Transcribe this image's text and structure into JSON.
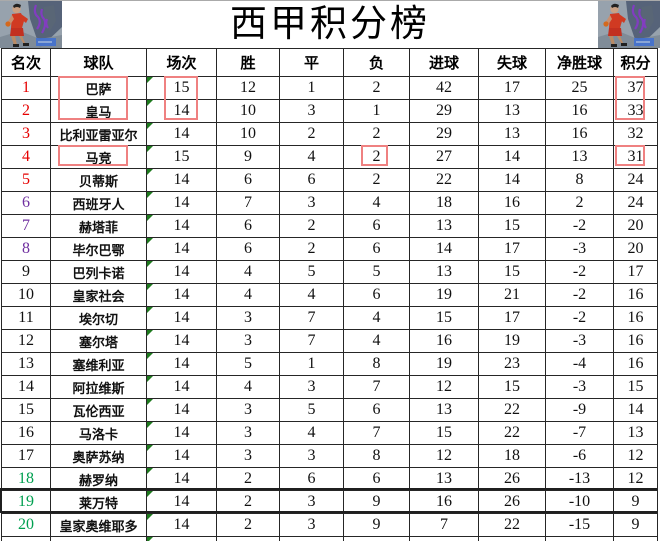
{
  "title": "西甲积分榜",
  "columns": [
    "名次",
    "球队",
    "场次",
    "胜",
    "平",
    "负",
    "进球",
    "失球",
    "净胜球",
    "积分"
  ],
  "rows": [
    {
      "rank": "1",
      "team": "巴萨",
      "played": "15",
      "win": "12",
      "draw": "1",
      "loss": "2",
      "gf": "42",
      "ga": "17",
      "gd": "25",
      "pts": "37",
      "rank_color": "red"
    },
    {
      "rank": "2",
      "team": "皇马",
      "played": "14",
      "win": "10",
      "draw": "3",
      "loss": "1",
      "gf": "29",
      "ga": "13",
      "gd": "16",
      "pts": "33",
      "rank_color": "red"
    },
    {
      "rank": "3",
      "team": "比利亚雷亚尔",
      "played": "14",
      "win": "10",
      "draw": "2",
      "loss": "2",
      "gf": "29",
      "ga": "13",
      "gd": "16",
      "pts": "32",
      "rank_color": "red"
    },
    {
      "rank": "4",
      "team": "马竞",
      "played": "15",
      "win": "9",
      "draw": "4",
      "loss": "2",
      "gf": "27",
      "ga": "14",
      "gd": "13",
      "pts": "31",
      "rank_color": "red"
    },
    {
      "rank": "5",
      "team": "贝蒂斯",
      "played": "14",
      "win": "6",
      "draw": "6",
      "loss": "2",
      "gf": "22",
      "ga": "14",
      "gd": "8",
      "pts": "24",
      "rank_color": "red"
    },
    {
      "rank": "6",
      "team": "西班牙人",
      "played": "14",
      "win": "7",
      "draw": "3",
      "loss": "4",
      "gf": "18",
      "ga": "16",
      "gd": "2",
      "pts": "24",
      "rank_color": "purple"
    },
    {
      "rank": "7",
      "team": "赫塔菲",
      "played": "14",
      "win": "6",
      "draw": "2",
      "loss": "6",
      "gf": "13",
      "ga": "15",
      "gd": "-2",
      "pts": "20",
      "rank_color": "purple"
    },
    {
      "rank": "8",
      "team": "毕尔巴鄂",
      "played": "14",
      "win": "6",
      "draw": "2",
      "loss": "6",
      "gf": "14",
      "ga": "17",
      "gd": "-3",
      "pts": "20",
      "rank_color": "purple"
    },
    {
      "rank": "9",
      "team": "巴列卡诺",
      "played": "14",
      "win": "4",
      "draw": "5",
      "loss": "5",
      "gf": "13",
      "ga": "15",
      "gd": "-2",
      "pts": "17",
      "rank_color": "black"
    },
    {
      "rank": "10",
      "team": "皇家社会",
      "played": "14",
      "win": "4",
      "draw": "4",
      "loss": "6",
      "gf": "19",
      "ga": "21",
      "gd": "-2",
      "pts": "16",
      "rank_color": "black"
    },
    {
      "rank": "11",
      "team": "埃尔切",
      "played": "14",
      "win": "3",
      "draw": "7",
      "loss": "4",
      "gf": "15",
      "ga": "17",
      "gd": "-2",
      "pts": "16",
      "rank_color": "black"
    },
    {
      "rank": "12",
      "team": "塞尔塔",
      "played": "14",
      "win": "3",
      "draw": "7",
      "loss": "4",
      "gf": "16",
      "ga": "19",
      "gd": "-3",
      "pts": "16",
      "rank_color": "black"
    },
    {
      "rank": "13",
      "team": "塞维利亚",
      "played": "14",
      "win": "5",
      "draw": "1",
      "loss": "8",
      "gf": "19",
      "ga": "23",
      "gd": "-4",
      "pts": "16",
      "rank_color": "black"
    },
    {
      "rank": "14",
      "team": "阿拉维斯",
      "played": "14",
      "win": "4",
      "draw": "3",
      "loss": "7",
      "gf": "12",
      "ga": "15",
      "gd": "-3",
      "pts": "15",
      "rank_color": "black"
    },
    {
      "rank": "15",
      "team": "瓦伦西亚",
      "played": "14",
      "win": "3",
      "draw": "5",
      "loss": "6",
      "gf": "13",
      "ga": "22",
      "gd": "-9",
      "pts": "14",
      "rank_color": "black"
    },
    {
      "rank": "16",
      "team": "马洛卡",
      "played": "14",
      "win": "3",
      "draw": "4",
      "loss": "7",
      "gf": "15",
      "ga": "22",
      "gd": "-7",
      "pts": "13",
      "rank_color": "black"
    },
    {
      "rank": "17",
      "team": "奥萨苏纳",
      "played": "14",
      "win": "3",
      "draw": "3",
      "loss": "8",
      "gf": "12",
      "ga": "18",
      "gd": "-6",
      "pts": "12",
      "rank_color": "black"
    },
    {
      "rank": "18",
      "team": "赫罗纳",
      "played": "14",
      "win": "2",
      "draw": "6",
      "loss": "6",
      "gf": "13",
      "ga": "26",
      "gd": "-13",
      "pts": "12",
      "rank_color": "green"
    },
    {
      "rank": "19",
      "team": "莱万特",
      "played": "14",
      "win": "2",
      "draw": "3",
      "loss": "9",
      "gf": "16",
      "ga": "26",
      "gd": "-10",
      "pts": "9",
      "rank_color": "green"
    },
    {
      "rank": "20",
      "team": "皇家奥维耶多",
      "played": "14",
      "win": "2",
      "draw": "3",
      "loss": "9",
      "gf": "7",
      "ga": "22",
      "gd": "-15",
      "pts": "9",
      "rank_color": "green"
    }
  ],
  "colors": {
    "rank": {
      "red": "#e60000",
      "purple": "#7030a0",
      "black": "#111111",
      "green": "#00a050"
    },
    "highlight": "#ef8181",
    "triangle": "#1e7a1e",
    "grid": "#262626",
    "selection": "#1f1f1f"
  },
  "highlights": {
    "boxes": [
      {
        "col": "team",
        "row_start": 1,
        "row_end": 2
      },
      {
        "col": "played",
        "row_start": 1,
        "row_end": 2
      },
      {
        "col": "pts",
        "row_start": 1,
        "row_end": 2
      },
      {
        "col": "team",
        "row_start": 4,
        "row_end": 4
      },
      {
        "col": "loss",
        "row_start": 4,
        "row_end": 4
      },
      {
        "col": "pts",
        "row_start": 4,
        "row_end": 4
      }
    ]
  },
  "selection": {
    "row_rank": 19
  },
  "icons": {
    "top_left": "basketball-player-art",
    "top_right": "basketball-player-art"
  },
  "chart_data": {
    "type": "table",
    "title": "西甲积分榜",
    "columns": [
      "名次",
      "球队",
      "场次",
      "胜",
      "平",
      "负",
      "进球",
      "失球",
      "净胜球",
      "积分"
    ],
    "rows": [
      [
        "1",
        "巴萨",
        "15",
        "12",
        "1",
        "2",
        "42",
        "17",
        "25",
        "37"
      ],
      [
        "2",
        "皇马",
        "14",
        "10",
        "3",
        "1",
        "29",
        "13",
        "16",
        "33"
      ],
      [
        "3",
        "比利亚雷亚尔",
        "14",
        "10",
        "2",
        "2",
        "29",
        "13",
        "16",
        "32"
      ],
      [
        "4",
        "马竞",
        "15",
        "9",
        "4",
        "2",
        "27",
        "14",
        "13",
        "31"
      ],
      [
        "5",
        "贝蒂斯",
        "14",
        "6",
        "6",
        "2",
        "22",
        "14",
        "8",
        "24"
      ],
      [
        "6",
        "西班牙人",
        "14",
        "7",
        "3",
        "4",
        "18",
        "16",
        "2",
        "24"
      ],
      [
        "7",
        "赫塔菲",
        "14",
        "6",
        "2",
        "6",
        "13",
        "15",
        "-2",
        "20"
      ],
      [
        "8",
        "毕尔巴鄂",
        "14",
        "6",
        "2",
        "6",
        "14",
        "17",
        "-3",
        "20"
      ],
      [
        "9",
        "巴列卡诺",
        "14",
        "4",
        "5",
        "5",
        "13",
        "15",
        "-2",
        "17"
      ],
      [
        "10",
        "皇家社会",
        "14",
        "4",
        "4",
        "6",
        "19",
        "21",
        "-2",
        "16"
      ],
      [
        "11",
        "埃尔切",
        "14",
        "3",
        "7",
        "4",
        "15",
        "17",
        "-2",
        "16"
      ],
      [
        "12",
        "塞尔塔",
        "14",
        "3",
        "7",
        "4",
        "16",
        "19",
        "-3",
        "16"
      ],
      [
        "13",
        "塞维利亚",
        "14",
        "5",
        "1",
        "8",
        "19",
        "23",
        "-4",
        "16"
      ],
      [
        "14",
        "阿拉维斯",
        "14",
        "4",
        "3",
        "7",
        "12",
        "15",
        "-3",
        "15"
      ],
      [
        "15",
        "瓦伦西亚",
        "14",
        "3",
        "5",
        "6",
        "13",
        "22",
        "-9",
        "14"
      ],
      [
        "16",
        "马洛卡",
        "14",
        "3",
        "4",
        "7",
        "15",
        "22",
        "-7",
        "13"
      ],
      [
        "17",
        "奥萨苏纳",
        "14",
        "3",
        "3",
        "8",
        "12",
        "18",
        "-6",
        "12"
      ],
      [
        "18",
        "赫罗纳",
        "14",
        "2",
        "6",
        "6",
        "13",
        "26",
        "-13",
        "12"
      ],
      [
        "19",
        "莱万特",
        "14",
        "2",
        "3",
        "9",
        "16",
        "26",
        "-10",
        "9"
      ],
      [
        "20",
        "皇家奥维耶多",
        "14",
        "2",
        "3",
        "9",
        "7",
        "22",
        "-15",
        "9"
      ]
    ]
  }
}
